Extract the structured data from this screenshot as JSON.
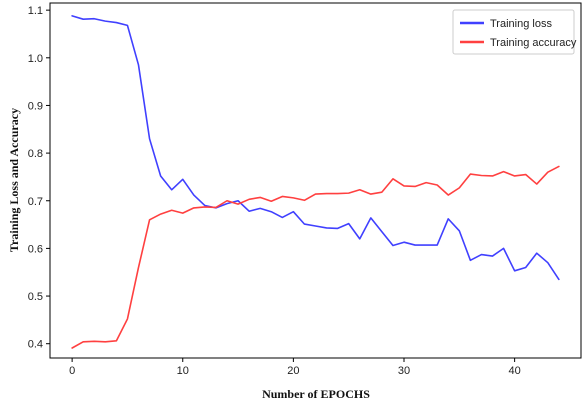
{
  "chart_data": {
    "type": "line",
    "title": "",
    "xlabel": "Number of EPOCHS",
    "ylabel": "Training Loss and Accuracy",
    "xlim": [
      -2,
      46
    ],
    "ylim": [
      0.37,
      1.115
    ],
    "xticks": [
      0,
      10,
      20,
      30,
      40
    ],
    "yticks": [
      0.4,
      0.5,
      0.6,
      0.7,
      0.8,
      0.9,
      1.0,
      1.1
    ],
    "grid": false,
    "legend_position": "top-right",
    "x": [
      0,
      1,
      2,
      3,
      4,
      5,
      6,
      7,
      8,
      9,
      10,
      11,
      12,
      13,
      14,
      15,
      16,
      17,
      18,
      19,
      20,
      21,
      22,
      23,
      24,
      25,
      26,
      27,
      28,
      29,
      30,
      31,
      32,
      33,
      34,
      35,
      36,
      37,
      38,
      39,
      40,
      41,
      42,
      43,
      44
    ],
    "series": [
      {
        "name": "Training loss",
        "color": "#4040ff",
        "values": [
          1.088,
          1.081,
          1.082,
          1.077,
          1.074,
          1.068,
          0.985,
          0.83,
          0.752,
          0.723,
          0.745,
          0.712,
          0.69,
          0.685,
          0.694,
          0.7,
          0.678,
          0.684,
          0.677,
          0.665,
          0.677,
          0.651,
          0.647,
          0.643,
          0.642,
          0.652,
          0.62,
          0.664,
          0.635,
          0.606,
          0.613,
          0.607,
          0.607,
          0.607,
          0.662,
          0.637,
          0.575,
          0.587,
          0.584,
          0.6,
          0.553,
          0.56,
          0.59,
          0.57,
          0.535
        ]
      },
      {
        "name": "Training accuracy",
        "color": "#ff4040",
        "values": [
          0.391,
          0.404,
          0.405,
          0.404,
          0.406,
          0.452,
          0.56,
          0.66,
          0.672,
          0.68,
          0.674,
          0.685,
          0.687,
          0.686,
          0.7,
          0.693,
          0.703,
          0.707,
          0.699,
          0.709,
          0.706,
          0.701,
          0.714,
          0.715,
          0.715,
          0.716,
          0.723,
          0.714,
          0.718,
          0.746,
          0.731,
          0.73,
          0.738,
          0.733,
          0.712,
          0.727,
          0.756,
          0.753,
          0.752,
          0.761,
          0.752,
          0.755,
          0.735,
          0.76,
          0.772
        ]
      }
    ]
  }
}
